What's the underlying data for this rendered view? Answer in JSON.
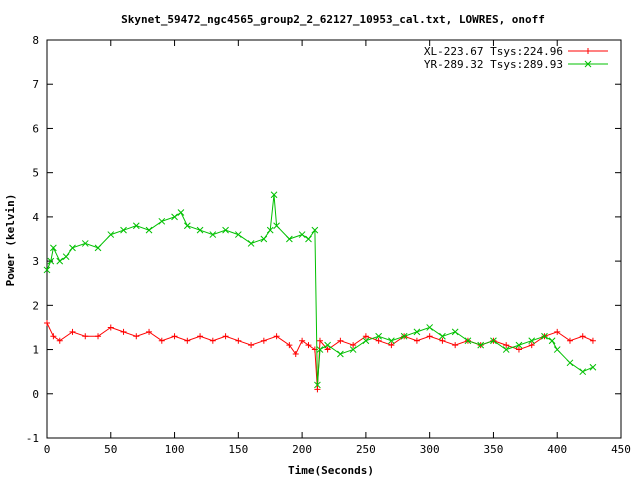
{
  "chart_data": {
    "type": "line",
    "title": "Skynet_59472_ngc4565_group2_2_62127_10953_cal.txt, LOWRES, onoff",
    "xlabel": "Time(Seconds)",
    "ylabel": "Power (kelvin)",
    "xlim": [
      0,
      450
    ],
    "ylim": [
      -1,
      8
    ],
    "xticks": [
      0,
      50,
      100,
      150,
      200,
      250,
      300,
      350,
      400,
      450
    ],
    "yticks": [
      -1,
      0,
      1,
      2,
      3,
      4,
      5,
      6,
      7,
      8
    ],
    "grid": false,
    "legend_position": "top-right",
    "series": [
      {
        "name": "XL-223.67 Tsys:224.96",
        "color": "#ff0000",
        "marker": "plus",
        "x": [
          0,
          5,
          10,
          20,
          30,
          40,
          50,
          60,
          70,
          80,
          90,
          100,
          110,
          120,
          130,
          140,
          150,
          160,
          170,
          180,
          190,
          195,
          200,
          205,
          210,
          212,
          214,
          220,
          230,
          240,
          250,
          260,
          270,
          280,
          290,
          300,
          310,
          320,
          330,
          340,
          350,
          360,
          370,
          380,
          390,
          400,
          410,
          420,
          428
        ],
        "y": [
          1.6,
          1.3,
          1.2,
          1.4,
          1.3,
          1.3,
          1.5,
          1.4,
          1.3,
          1.4,
          1.2,
          1.3,
          1.2,
          1.3,
          1.2,
          1.3,
          1.2,
          1.1,
          1.2,
          1.3,
          1.1,
          0.9,
          1.2,
          1.1,
          1.0,
          0.1,
          1.2,
          1.0,
          1.2,
          1.1,
          1.3,
          1.2,
          1.1,
          1.3,
          1.2,
          1.3,
          1.2,
          1.1,
          1.2,
          1.1,
          1.2,
          1.1,
          1.0,
          1.1,
          1.3,
          1.4,
          1.2,
          1.3,
          1.2
        ]
      },
      {
        "name": "YR-289.32 Tsys:289.93",
        "color": "#00c000",
        "marker": "cross",
        "x": [
          0,
          3,
          5,
          10,
          15,
          20,
          30,
          40,
          50,
          60,
          70,
          80,
          90,
          100,
          105,
          110,
          120,
          130,
          140,
          150,
          160,
          170,
          175,
          178,
          180,
          190,
          200,
          205,
          210,
          212,
          214,
          220,
          230,
          240,
          250,
          260,
          270,
          280,
          290,
          300,
          310,
          320,
          330,
          340,
          350,
          360,
          370,
          380,
          390,
          396,
          400,
          410,
          420,
          428
        ],
        "y": [
          2.8,
          3.0,
          3.3,
          3.0,
          3.1,
          3.3,
          3.4,
          3.3,
          3.6,
          3.7,
          3.8,
          3.7,
          3.9,
          4.0,
          4.1,
          3.8,
          3.7,
          3.6,
          3.7,
          3.6,
          3.4,
          3.5,
          3.7,
          4.5,
          3.8,
          3.5,
          3.6,
          3.5,
          3.7,
          0.2,
          1.0,
          1.1,
          0.9,
          1.0,
          1.2,
          1.3,
          1.2,
          1.3,
          1.4,
          1.5,
          1.3,
          1.4,
          1.2,
          1.1,
          1.2,
          1.0,
          1.1,
          1.2,
          1.3,
          1.2,
          1.0,
          0.7,
          0.5,
          0.6
        ]
      }
    ]
  }
}
